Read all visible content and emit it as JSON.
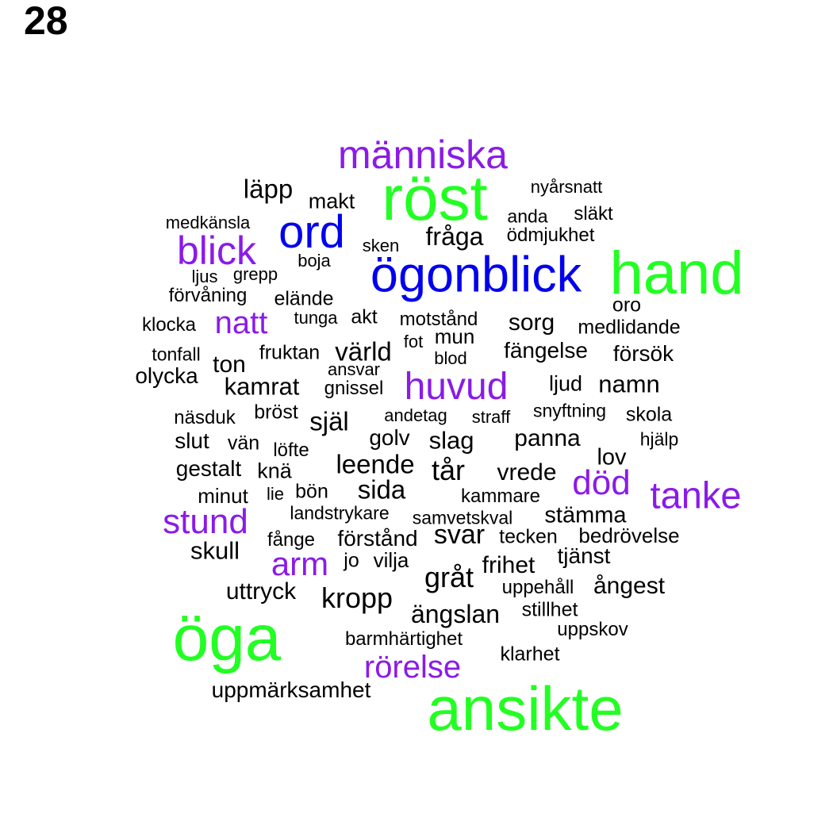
{
  "panel_number": "28",
  "palette": {
    "green": "#22ff22",
    "blue": "#0000ee",
    "purple": "#8a1be8",
    "black": "#000000"
  },
  "words": [
    {
      "text": "röst",
      "color": "green"
    },
    {
      "text": "hand",
      "color": "green"
    },
    {
      "text": "öga",
      "color": "green"
    },
    {
      "text": "ansikte",
      "color": "green"
    },
    {
      "text": "ögonblick",
      "color": "blue"
    },
    {
      "text": "ord",
      "color": "blue"
    },
    {
      "text": "människa",
      "color": "purple"
    },
    {
      "text": "blick",
      "color": "purple"
    },
    {
      "text": "natt",
      "color": "purple"
    },
    {
      "text": "huvud",
      "color": "purple"
    },
    {
      "text": "död",
      "color": "purple"
    },
    {
      "text": "tanke",
      "color": "purple"
    },
    {
      "text": "stund",
      "color": "purple"
    },
    {
      "text": "arm",
      "color": "purple"
    },
    {
      "text": "rörelse",
      "color": "purple"
    },
    {
      "text": "läpp",
      "color": "black"
    },
    {
      "text": "makt",
      "color": "black"
    },
    {
      "text": "nyårsnatt",
      "color": "black"
    },
    {
      "text": "anda",
      "color": "black"
    },
    {
      "text": "släkt",
      "color": "black"
    },
    {
      "text": "medkänsla",
      "color": "black"
    },
    {
      "text": "fråga",
      "color": "black"
    },
    {
      "text": "ödmjukhet",
      "color": "black"
    },
    {
      "text": "sken",
      "color": "black"
    },
    {
      "text": "boja",
      "color": "black"
    },
    {
      "text": "ljus",
      "color": "black"
    },
    {
      "text": "grepp",
      "color": "black"
    },
    {
      "text": "förvåning",
      "color": "black"
    },
    {
      "text": "elände",
      "color": "black"
    },
    {
      "text": "oro",
      "color": "black"
    },
    {
      "text": "klocka",
      "color": "black"
    },
    {
      "text": "tunga",
      "color": "black"
    },
    {
      "text": "akt",
      "color": "black"
    },
    {
      "text": "motstånd",
      "color": "black"
    },
    {
      "text": "sorg",
      "color": "black"
    },
    {
      "text": "medlidande",
      "color": "black"
    },
    {
      "text": "mun",
      "color": "black"
    },
    {
      "text": "fot",
      "color": "black"
    },
    {
      "text": "tonfall",
      "color": "black"
    },
    {
      "text": "fruktan",
      "color": "black"
    },
    {
      "text": "värld",
      "color": "black"
    },
    {
      "text": "blod",
      "color": "black"
    },
    {
      "text": "fängelse",
      "color": "black"
    },
    {
      "text": "försök",
      "color": "black"
    },
    {
      "text": "ton",
      "color": "black"
    },
    {
      "text": "olycka",
      "color": "black"
    },
    {
      "text": "ansvar",
      "color": "black"
    },
    {
      "text": "kamrat",
      "color": "black"
    },
    {
      "text": "gnissel",
      "color": "black"
    },
    {
      "text": "ljud",
      "color": "black"
    },
    {
      "text": "namn",
      "color": "black"
    },
    {
      "text": "näsduk",
      "color": "black"
    },
    {
      "text": "bröst",
      "color": "black"
    },
    {
      "text": "själ",
      "color": "black"
    },
    {
      "text": "andetag",
      "color": "black"
    },
    {
      "text": "straff",
      "color": "black"
    },
    {
      "text": "snyftning",
      "color": "black"
    },
    {
      "text": "skola",
      "color": "black"
    },
    {
      "text": "slut",
      "color": "black"
    },
    {
      "text": "vän",
      "color": "black"
    },
    {
      "text": "golv",
      "color": "black"
    },
    {
      "text": "slag",
      "color": "black"
    },
    {
      "text": "panna",
      "color": "black"
    },
    {
      "text": "hjälp",
      "color": "black"
    },
    {
      "text": "löfte",
      "color": "black"
    },
    {
      "text": "lov",
      "color": "black"
    },
    {
      "text": "gestalt",
      "color": "black"
    },
    {
      "text": "knä",
      "color": "black"
    },
    {
      "text": "leende",
      "color": "black"
    },
    {
      "text": "tår",
      "color": "black"
    },
    {
      "text": "vrede",
      "color": "black"
    },
    {
      "text": "minut",
      "color": "black"
    },
    {
      "text": "lie",
      "color": "black"
    },
    {
      "text": "bön",
      "color": "black"
    },
    {
      "text": "sida",
      "color": "black"
    },
    {
      "text": "kammare",
      "color": "black"
    },
    {
      "text": "landstrykare",
      "color": "black"
    },
    {
      "text": "samvetskval",
      "color": "black"
    },
    {
      "text": "stämma",
      "color": "black"
    },
    {
      "text": "fånge",
      "color": "black"
    },
    {
      "text": "förstånd",
      "color": "black"
    },
    {
      "text": "svar",
      "color": "black"
    },
    {
      "text": "tecken",
      "color": "black"
    },
    {
      "text": "bedrövelse",
      "color": "black"
    },
    {
      "text": "skull",
      "color": "black"
    },
    {
      "text": "jo",
      "color": "black"
    },
    {
      "text": "vilja",
      "color": "black"
    },
    {
      "text": "tjänst",
      "color": "black"
    },
    {
      "text": "frihet",
      "color": "black"
    },
    {
      "text": "gråt",
      "color": "black"
    },
    {
      "text": "uppehåll",
      "color": "black"
    },
    {
      "text": "ångest",
      "color": "black"
    },
    {
      "text": "uttryck",
      "color": "black"
    },
    {
      "text": "kropp",
      "color": "black"
    },
    {
      "text": "stillhet",
      "color": "black"
    },
    {
      "text": "ängslan",
      "color": "black"
    },
    {
      "text": "uppskov",
      "color": "black"
    },
    {
      "text": "barmhärtighet",
      "color": "black"
    },
    {
      "text": "klarhet",
      "color": "black"
    },
    {
      "text": "uppmärksamhet",
      "color": "black"
    }
  ]
}
